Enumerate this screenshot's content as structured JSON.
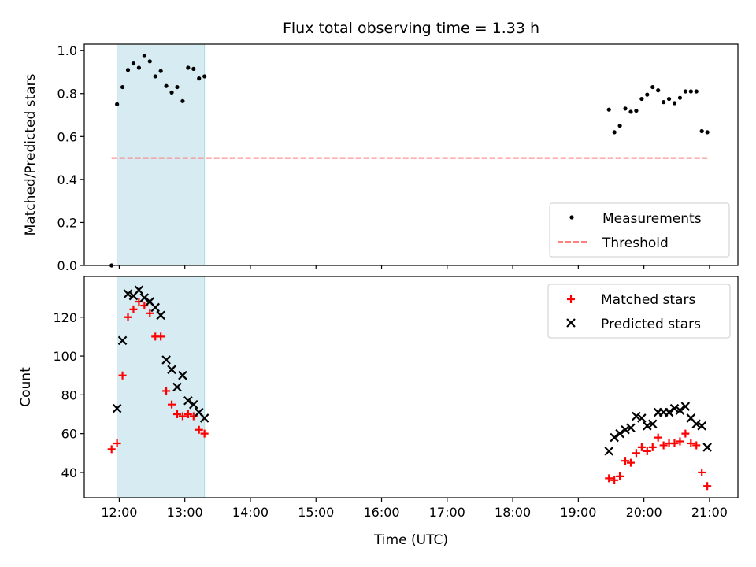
{
  "title": "Flux total observing time = 1.33 h",
  "colors": {
    "highlight": "#add8e6",
    "measurement": "#000000",
    "threshold": "#ff7f7f",
    "matched": "#ff0000",
    "predicted": "#000000"
  },
  "chart_data": [
    {
      "type": "scatter",
      "ylabel": "Matched/Predicted stars",
      "x_unit": "hours UTC",
      "xlim": [
        "11:28",
        "21:26"
      ],
      "ylim": [
        0,
        1.03
      ],
      "yticks": [
        0.0,
        0.2,
        0.4,
        0.6,
        0.8,
        1.0
      ],
      "ytick_labels": [
        "0.0",
        "0.2",
        "0.4",
        "0.6",
        "0.8",
        "1.0"
      ],
      "highlight_span": [
        "11:58",
        "13:18"
      ],
      "legend": {
        "placement": "lower right",
        "entries": [
          "Measurements",
          "Threshold"
        ]
      },
      "series": [
        {
          "name": "Measurements",
          "marker": "dot",
          "x": [
            "11:53",
            "11:58",
            "12:03",
            "12:08",
            "12:13",
            "12:18",
            "12:23",
            "12:28",
            "12:33",
            "12:38",
            "12:43",
            "12:48",
            "12:53",
            "12:58",
            "13:03",
            "13:08",
            "13:13",
            "13:18",
            "19:28",
            "19:33",
            "19:38",
            "19:43",
            "19:48",
            "19:53",
            "19:58",
            "20:03",
            "20:08",
            "20:13",
            "20:18",
            "20:23",
            "20:28",
            "20:33",
            "20:38",
            "20:43",
            "20:48",
            "20:53",
            "20:58"
          ],
          "y": [
            0.0,
            0.75,
            0.83,
            0.91,
            0.94,
            0.92,
            0.975,
            0.95,
            0.88,
            0.905,
            0.835,
            0.805,
            0.83,
            0.765,
            0.92,
            0.915,
            0.87,
            0.88,
            0.725,
            0.62,
            0.65,
            0.73,
            0.715,
            0.72,
            0.775,
            0.795,
            0.83,
            0.815,
            0.76,
            0.775,
            0.755,
            0.78,
            0.81,
            0.81,
            0.81,
            0.625,
            0.62
          ]
        },
        {
          "name": "Threshold",
          "marker": "dashed-line",
          "x": [
            "11:53",
            "20:58"
          ],
          "y": [
            0.5,
            0.5
          ]
        }
      ]
    },
    {
      "type": "scatter",
      "xlabel": "Time (UTC)",
      "ylabel": "Count",
      "x_unit": "hours UTC",
      "xlim": [
        "11:28",
        "21:26"
      ],
      "ylim": [
        27,
        141
      ],
      "xticks": [
        "12:00",
        "13:00",
        "14:00",
        "15:00",
        "16:00",
        "17:00",
        "18:00",
        "19:00",
        "20:00",
        "21:00"
      ],
      "yticks": [
        40,
        60,
        80,
        100,
        120
      ],
      "ytick_labels": [
        "40",
        "60",
        "80",
        "100",
        "120"
      ],
      "highlight_span": [
        "11:58",
        "13:18"
      ],
      "legend": {
        "placement": "upper right",
        "entries": [
          "Matched stars",
          "Predicted stars"
        ]
      },
      "series": [
        {
          "name": "Matched stars",
          "marker": "plus",
          "x": [
            "11:53",
            "11:58",
            "12:03",
            "12:08",
            "12:13",
            "12:18",
            "12:23",
            "12:28",
            "12:33",
            "12:38",
            "12:43",
            "12:48",
            "12:53",
            "12:58",
            "13:03",
            "13:08",
            "13:13",
            "13:18",
            "19:28",
            "19:33",
            "19:38",
            "19:43",
            "19:48",
            "19:53",
            "19:58",
            "20:03",
            "20:08",
            "20:13",
            "20:18",
            "20:23",
            "20:28",
            "20:33",
            "20:38",
            "20:43",
            "20:48",
            "20:53",
            "20:58"
          ],
          "y": [
            52,
            55,
            90,
            120,
            124,
            128,
            126,
            122,
            110,
            110,
            82,
            75,
            70,
            69,
            70,
            69,
            62,
            60,
            37,
            36,
            38,
            46,
            45,
            50,
            53,
            51,
            53,
            58,
            54,
            55,
            55,
            56,
            60,
            55,
            54,
            40,
            33
          ]
        },
        {
          "name": "Predicted stars",
          "marker": "x",
          "x": [
            "11:58",
            "12:03",
            "12:08",
            "12:13",
            "12:18",
            "12:23",
            "12:28",
            "12:33",
            "12:38",
            "12:43",
            "12:48",
            "12:53",
            "12:58",
            "13:03",
            "13:08",
            "13:13",
            "13:18",
            "19:28",
            "19:33",
            "19:38",
            "19:43",
            "19:48",
            "19:53",
            "19:58",
            "20:03",
            "20:08",
            "20:13",
            "20:18",
            "20:23",
            "20:28",
            "20:33",
            "20:38",
            "20:43",
            "20:48",
            "20:53",
            "20:58"
          ],
          "y": [
            73,
            108,
            132,
            131,
            134,
            130,
            128,
            125,
            121,
            98,
            93,
            84,
            90,
            77,
            75,
            71,
            68,
            51,
            58,
            60,
            62,
            63,
            69,
            68,
            64,
            65,
            71,
            71,
            71,
            73,
            72,
            74,
            68,
            65,
            64,
            53
          ]
        }
      ]
    }
  ]
}
